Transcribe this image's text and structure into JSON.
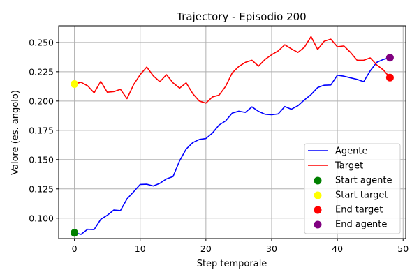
{
  "chart_data": {
    "type": "line",
    "title": "Trajectory - Episodio 200",
    "xlabel": "Step temporale",
    "ylabel": "Valore (es. angolo)",
    "xlim": [
      -2.4,
      50.4
    ],
    "ylim": [
      0.0826,
      0.2642
    ],
    "xticks": [
      0,
      10,
      20,
      30,
      40,
      50
    ],
    "yticks": [
      0.1,
      0.125,
      0.15,
      0.175,
      0.2,
      0.225,
      0.25
    ],
    "ytick_labels": [
      "0.100",
      "0.125",
      "0.150",
      "0.175",
      "0.200",
      "0.225",
      "0.250"
    ],
    "grid": true,
    "legend_position": "lower-right",
    "series": [
      {
        "name": "Agente",
        "color": "#0000ff",
        "x": [
          0,
          1,
          2,
          3,
          4,
          5,
          6,
          7,
          8,
          9,
          10,
          11,
          12,
          13,
          14,
          15,
          16,
          17,
          18,
          19,
          20,
          21,
          22,
          23,
          24,
          25,
          26,
          27,
          28,
          29,
          30,
          31,
          32,
          33,
          34,
          35,
          36,
          37,
          38,
          39,
          40,
          41,
          42,
          43,
          44,
          45,
          46,
          47,
          48
        ],
        "values": [
          0.0875,
          0.0862,
          0.0905,
          0.0903,
          0.099,
          0.1025,
          0.107,
          0.1065,
          0.1165,
          0.1225,
          0.1288,
          0.129,
          0.1275,
          0.1298,
          0.1335,
          0.1355,
          0.149,
          0.159,
          0.1645,
          0.1672,
          0.168,
          0.1727,
          0.1795,
          0.183,
          0.1897,
          0.1913,
          0.1903,
          0.195,
          0.1912,
          0.1887,
          0.1883,
          0.189,
          0.1953,
          0.193,
          0.196,
          0.201,
          0.2055,
          0.2115,
          0.2135,
          0.2137,
          0.222,
          0.2212,
          0.2198,
          0.2185,
          0.2165,
          0.2258,
          0.233,
          0.2355,
          0.237
        ]
      },
      {
        "name": "Target",
        "color": "#ff0000",
        "x": [
          0,
          1,
          2,
          3,
          4,
          5,
          6,
          7,
          8,
          9,
          10,
          11,
          12,
          13,
          14,
          15,
          16,
          17,
          18,
          19,
          20,
          21,
          22,
          23,
          24,
          25,
          26,
          27,
          28,
          29,
          30,
          31,
          32,
          33,
          34,
          35,
          36,
          37,
          38,
          39,
          40,
          41,
          42,
          43,
          44,
          45,
          46,
          47,
          48
        ],
        "values": [
          0.2145,
          0.216,
          0.213,
          0.207,
          0.2168,
          0.2075,
          0.208,
          0.21,
          0.202,
          0.214,
          0.2225,
          0.229,
          0.2215,
          0.2165,
          0.2225,
          0.2155,
          0.211,
          0.2155,
          0.2063,
          0.2,
          0.1982,
          0.2035,
          0.205,
          0.2125,
          0.224,
          0.2295,
          0.233,
          0.2348,
          0.2298,
          0.2355,
          0.2395,
          0.2428,
          0.248,
          0.2445,
          0.2415,
          0.246,
          0.255,
          0.244,
          0.251,
          0.2528,
          0.2463,
          0.247,
          0.2415,
          0.2348,
          0.2348,
          0.2368,
          0.2308,
          0.2265,
          0.22
        ]
      }
    ],
    "markers": [
      {
        "name": "Start agente",
        "x": 0,
        "y": 0.0875,
        "color": "#008000"
      },
      {
        "name": "Start target",
        "x": 0,
        "y": 0.2145,
        "color": "#ffff00"
      },
      {
        "name": "End target",
        "x": 48,
        "y": 0.22,
        "color": "#ff0000"
      },
      {
        "name": "End agente",
        "x": 48,
        "y": 0.237,
        "color": "#800080"
      }
    ]
  }
}
